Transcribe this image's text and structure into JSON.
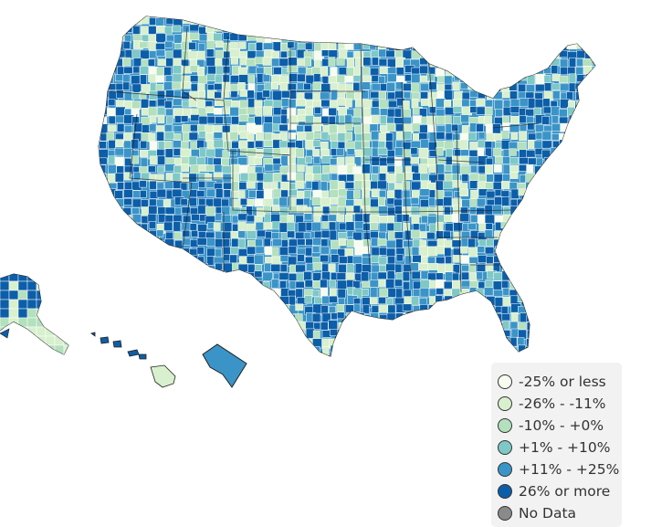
{
  "map": {
    "region": "United States counties",
    "ocean_color": "#ffffff",
    "border_color": "#ffffff",
    "state_border_color": "#222222"
  },
  "legend": {
    "items": [
      {
        "label": "-25% or less",
        "color": "#f7fcf0"
      },
      {
        "label": "-26% - -11%",
        "color": "#d8f0cd"
      },
      {
        "label": "-10% - +0%",
        "color": "#b3e0bd"
      },
      {
        "label": "+1% - +10%",
        "color": "#7ec8c6"
      },
      {
        "label": "+11% - +25%",
        "color": "#3b94c7"
      },
      {
        "label": "26% or more",
        "color": "#0c5ea8"
      },
      {
        "label": "No Data",
        "color": "#8a8a8a"
      }
    ]
  }
}
